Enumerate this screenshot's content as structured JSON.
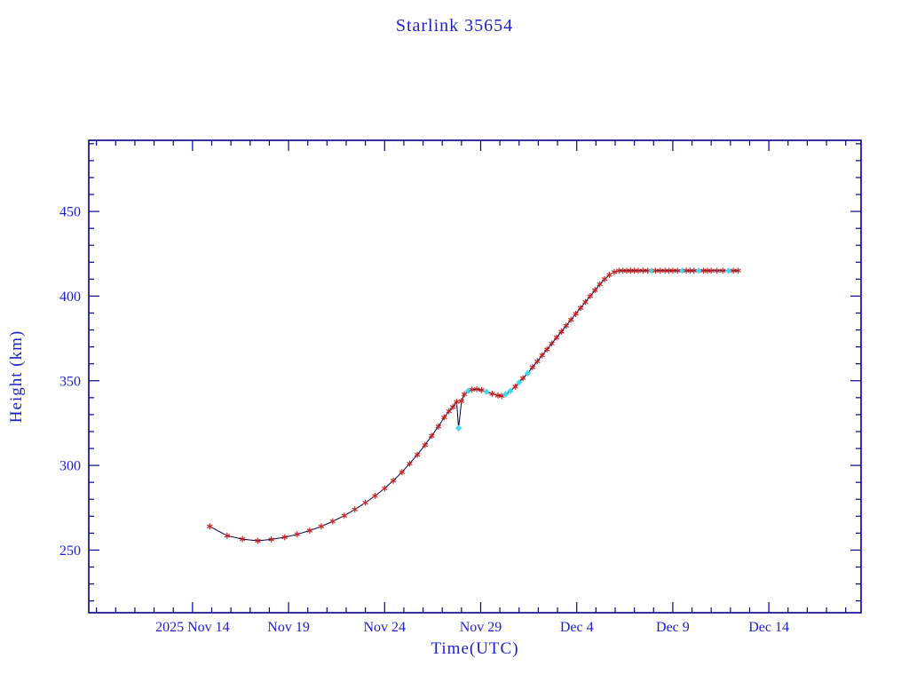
{
  "colors": {
    "background": "#ffffff",
    "text_blue": "#1d1dcb",
    "frame_blue": "#00008b",
    "line_navy": "#000042",
    "marker_red": "#c42222",
    "marker_cyan": "#40d8e8"
  },
  "chart_data": {
    "type": "line",
    "title": "Starlink 35654",
    "xlabel": "Time(UTC)",
    "ylabel": "Height (km)",
    "x_epoch": "days since 2025 Nov 14 00:00 UTC",
    "xlim": [
      -5.4,
      34.8
    ],
    "ylim": [
      213,
      492
    ],
    "grid": false,
    "legend": null,
    "y_major_ticks": [
      250,
      300,
      350,
      400,
      450
    ],
    "y_minor_step": 10,
    "x_minor_step": 1,
    "x_major_ticks": [
      {
        "day": 0,
        "label": "2025 Nov 14"
      },
      {
        "day": 5,
        "label": "Nov 19"
      },
      {
        "day": 10,
        "label": "Nov 24"
      },
      {
        "day": 15,
        "label": "Nov 29"
      },
      {
        "day": 20,
        "label": "Dec 4"
      },
      {
        "day": 25,
        "label": "Dec 9"
      },
      {
        "day": 30,
        "label": "Dec 14"
      }
    ],
    "marker_legend": {
      "r": "red asterisk data point",
      "c": "cyan diamond data point"
    },
    "series": [
      {
        "name": "orbit-height",
        "points": [
          [
            0.9,
            264,
            "r"
          ],
          [
            1.8,
            258.5,
            "r"
          ],
          [
            2.6,
            256.5,
            "r"
          ],
          [
            3.4,
            255.5,
            "r"
          ],
          [
            4.1,
            256.3,
            "r"
          ],
          [
            4.8,
            257.6,
            "r"
          ],
          [
            5.45,
            259.3,
            "r"
          ],
          [
            6.1,
            261.5,
            "r"
          ],
          [
            6.7,
            264,
            "r"
          ],
          [
            7.3,
            267,
            "r"
          ],
          [
            7.9,
            270.3,
            "r"
          ],
          [
            8.45,
            274,
            "r"
          ],
          [
            9.0,
            278,
            "r"
          ],
          [
            9.5,
            282,
            "r"
          ],
          [
            10.0,
            286.4,
            "r"
          ],
          [
            10.45,
            291,
            "r"
          ],
          [
            10.9,
            296,
            "r"
          ],
          [
            11.3,
            301,
            "r"
          ],
          [
            11.7,
            306.3,
            "r"
          ],
          [
            12.1,
            312,
            "r"
          ],
          [
            12.45,
            317.5,
            "r"
          ],
          [
            12.8,
            323,
            "r"
          ],
          [
            13.1,
            328.4,
            "r"
          ],
          [
            13.35,
            332,
            "r"
          ],
          [
            13.55,
            334.5,
            "r"
          ],
          [
            13.75,
            337.5,
            "r"
          ],
          [
            13.85,
            322,
            "c"
          ],
          [
            14.0,
            338,
            "r"
          ],
          [
            14.15,
            342,
            "r"
          ],
          [
            14.35,
            344,
            "c"
          ],
          [
            14.55,
            344.8,
            "r"
          ],
          [
            14.8,
            345,
            "r"
          ],
          [
            15.05,
            344.5,
            "r"
          ],
          [
            15.3,
            343.5,
            "c"
          ],
          [
            15.6,
            342.3,
            "r"
          ],
          [
            15.9,
            341.3,
            "r"
          ],
          [
            16.1,
            341,
            "r"
          ],
          [
            16.3,
            342,
            "c"
          ],
          [
            16.55,
            344,
            "c"
          ],
          [
            16.8,
            346.5,
            "r"
          ],
          [
            17.0,
            349,
            "c"
          ],
          [
            17.2,
            351.5,
            "r"
          ],
          [
            17.45,
            354.5,
            "c"
          ],
          [
            17.7,
            358,
            "r"
          ],
          [
            17.95,
            361.5,
            "r"
          ],
          [
            18.2,
            365,
            "r"
          ],
          [
            18.45,
            368.5,
            "r"
          ],
          [
            18.7,
            372,
            "r"
          ],
          [
            18.95,
            375.5,
            "r"
          ],
          [
            19.2,
            379,
            "r"
          ],
          [
            19.45,
            382.5,
            "r"
          ],
          [
            19.7,
            386,
            "r"
          ],
          [
            19.95,
            389.5,
            "r"
          ],
          [
            20.2,
            393,
            "r"
          ],
          [
            20.45,
            396.5,
            "r"
          ],
          [
            20.7,
            400,
            "r"
          ],
          [
            20.95,
            403.5,
            "r"
          ],
          [
            21.2,
            407,
            "r"
          ],
          [
            21.45,
            410,
            "r"
          ],
          [
            21.7,
            412.5,
            "r"
          ],
          [
            21.95,
            414.2,
            "r"
          ],
          [
            22.2,
            415,
            "r"
          ],
          [
            22.4,
            415,
            "r"
          ],
          [
            22.6,
            415,
            "r"
          ],
          [
            22.8,
            415,
            "r"
          ],
          [
            23.0,
            415,
            "r"
          ],
          [
            23.2,
            415,
            "r"
          ],
          [
            23.45,
            415,
            "r"
          ],
          [
            23.7,
            415,
            "r"
          ],
          [
            23.9,
            415,
            "c"
          ],
          [
            24.1,
            415,
            "r"
          ],
          [
            24.35,
            415,
            "r"
          ],
          [
            24.6,
            415,
            "r"
          ],
          [
            24.8,
            415,
            "r"
          ],
          [
            25.0,
            415,
            "r"
          ],
          [
            25.25,
            415,
            "r"
          ],
          [
            25.5,
            415,
            "c"
          ],
          [
            25.7,
            415,
            "r"
          ],
          [
            25.9,
            415,
            "r"
          ],
          [
            26.1,
            415,
            "r"
          ],
          [
            26.35,
            415,
            "c"
          ],
          [
            26.6,
            415,
            "r"
          ],
          [
            26.8,
            415,
            "r"
          ],
          [
            27.0,
            415,
            "r"
          ],
          [
            27.3,
            415,
            "r"
          ],
          [
            27.6,
            415,
            "r"
          ],
          [
            27.9,
            415,
            "c"
          ],
          [
            28.15,
            415,
            "r"
          ],
          [
            28.4,
            415,
            "r"
          ]
        ]
      }
    ]
  }
}
